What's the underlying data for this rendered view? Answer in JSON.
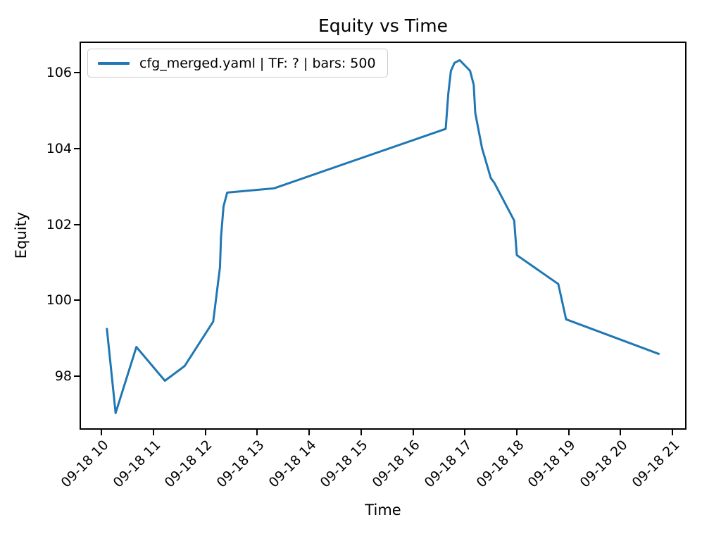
{
  "chart_data": {
    "type": "line",
    "title": "Equity vs Time",
    "xlabel": "Time",
    "ylabel": "Equity",
    "grid": false,
    "axis_color": "#000000",
    "legend": {
      "position": "upper left",
      "entries": [
        {
          "label": "cfg_merged.yaml | TF: ? | bars: 500",
          "color": "#1f77b4"
        }
      ]
    },
    "x_unit": "date-time on 09-18, hour of day",
    "x_ticks": [
      {
        "hour": 10,
        "label": "09-18 10"
      },
      {
        "hour": 11,
        "label": "09-18 11"
      },
      {
        "hour": 12,
        "label": "09-18 12"
      },
      {
        "hour": 13,
        "label": "09-18 13"
      },
      {
        "hour": 14,
        "label": "09-18 14"
      },
      {
        "hour": 15,
        "label": "09-18 15"
      },
      {
        "hour": 16,
        "label": "09-18 16"
      },
      {
        "hour": 17,
        "label": "09-18 17"
      },
      {
        "hour": 18,
        "label": "09-18 18"
      },
      {
        "hour": 19,
        "label": "09-18 19"
      },
      {
        "hour": 20,
        "label": "09-18 20"
      },
      {
        "hour": 21,
        "label": "09-18 21"
      }
    ],
    "y_ticks": [
      106,
      104,
      102,
      100,
      98
    ],
    "x_range_hours": [
      9.575,
      21.27
    ],
    "y_range": [
      96.59,
      106.82
    ],
    "series": [
      {
        "name": "cfg_merged.yaml | TF: ? | bars: 500",
        "color": "#1f77b4",
        "line_width": 3,
        "points": [
          [
            10.1,
            99.27
          ],
          [
            10.27,
            97.03
          ],
          [
            10.67,
            98.77
          ],
          [
            11.22,
            97.88
          ],
          [
            11.6,
            98.27
          ],
          [
            12.15,
            99.44
          ],
          [
            12.28,
            100.87
          ],
          [
            12.3,
            101.67
          ],
          [
            12.35,
            102.48
          ],
          [
            12.42,
            102.84
          ],
          [
            13.32,
            102.95
          ],
          [
            16.63,
            104.52
          ],
          [
            16.68,
            105.45
          ],
          [
            16.73,
            106.05
          ],
          [
            16.8,
            106.26
          ],
          [
            16.9,
            106.33
          ],
          [
            17.1,
            106.05
          ],
          [
            17.17,
            105.68
          ],
          [
            17.2,
            104.94
          ],
          [
            17.33,
            104.01
          ],
          [
            17.5,
            103.22
          ],
          [
            17.57,
            103.09
          ],
          [
            17.95,
            102.1
          ],
          [
            18.0,
            101.19
          ],
          [
            18.8,
            100.43
          ],
          [
            18.95,
            99.5
          ],
          [
            20.75,
            98.58
          ]
        ]
      }
    ]
  }
}
